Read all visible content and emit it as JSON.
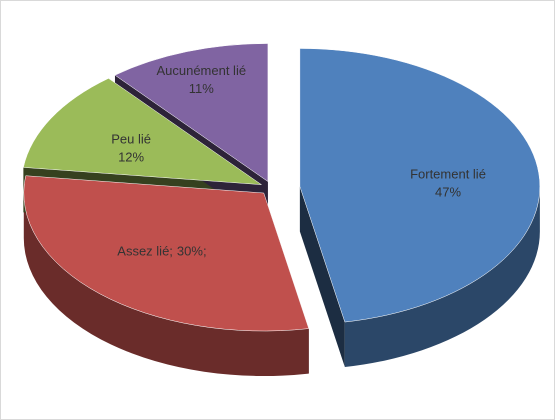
{
  "chart_data": {
    "type": "pie",
    "categories": [
      "Fortement lié",
      "Assez lié;",
      "Peu lié",
      "Aucunément lié"
    ],
    "values": [
      47,
      30,
      12,
      11
    ],
    "value_labels": [
      "47%",
      "30%;",
      "12%",
      "11%"
    ],
    "colors": [
      "#4f81bd",
      "#c0504d",
      "#9bbb59",
      "#8064a2"
    ]
  }
}
